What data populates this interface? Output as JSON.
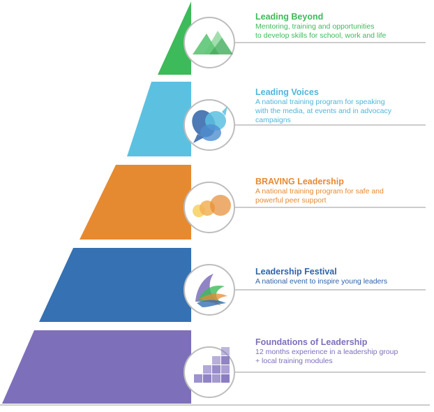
{
  "diagram": {
    "tiers": [
      {
        "title": "Leading Beyond",
        "description": [
          "Mentoring, training and opportunities",
          "to develop skills for school, work and life"
        ],
        "color": "#3dba5a",
        "icon": "mountains-icon"
      },
      {
        "title": "Leading Voices",
        "description": [
          "A national training program for speaking",
          "with the media, at events and in advocacy",
          "campaigns"
        ],
        "color": "#5cc1e0",
        "icon": "speech-bubbles-icon"
      },
      {
        "title": "BRAVING Leadership",
        "description": [
          "A national training program for safe and",
          "powerful peer support"
        ],
        "color": "#e68a31",
        "icon": "circles-icon"
      },
      {
        "title": "Leadership Festival",
        "description": [
          "A national event to inspire young leaders"
        ],
        "color": "#3571b3",
        "icon": "waves-icon"
      },
      {
        "title": "Foundations of Leadership",
        "description": [
          "12 months experience in a leadership group",
          "+ local training modules"
        ],
        "color": "#7e6fbb",
        "icon": "blocks-icon"
      }
    ]
  }
}
